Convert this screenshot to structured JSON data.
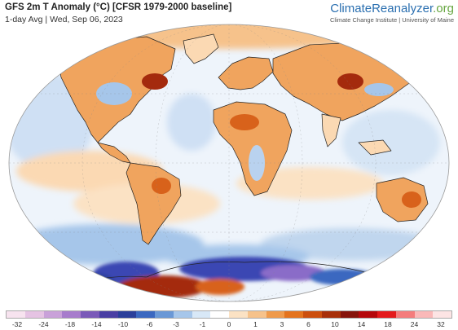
{
  "header": {
    "title": "GFS 2m T Anomaly (°C) [CFSR 1979-2000 baseline]",
    "subtitle": "1-day Avg | Wed, Sep 06, 2023"
  },
  "brand": {
    "name_main": "ClimateReanalyzer",
    "name_suffix": ".org",
    "institution": "Climate Change Institute | University of Maine",
    "color_main": "#2a6fb0",
    "color_suffix": "#66a640"
  },
  "legend": {
    "ticks": [
      "-32",
      "-24",
      "-18",
      "-14",
      "-10",
      "-6",
      "-3",
      "-1",
      "0",
      "1",
      "3",
      "6",
      "10",
      "14",
      "18",
      "24",
      "32"
    ],
    "colors": [
      "#f7e3ef",
      "#e5c3e3",
      "#c9a1d9",
      "#a77ccc",
      "#7a5ab8",
      "#4a3fa3",
      "#2b3f9a",
      "#3b68c0",
      "#6a98d6",
      "#a6c6ea",
      "#d8e8f7",
      "#ffffff",
      "#fbe2c4",
      "#f6c28b",
      "#ef9a4b",
      "#e4731d",
      "#cc4f0e",
      "#a8300a",
      "#86140b",
      "#b5080b",
      "#e41a1c",
      "#f47c7c",
      "#fab8b8",
      "#fde4e4"
    ]
  },
  "map": {
    "projection": "Robinson-like world map",
    "palette": {
      "ocean_neutral": "#e9f1fa",
      "cold_light": "#b9d2ef",
      "cold_mid": "#7fa7de",
      "cold_deep": "#3b46b3",
      "cold_purple": "#8a6cc8",
      "warm_light": "#fbd9b3",
      "warm_mid": "#f0a45e",
      "warm_deep": "#d8621b",
      "hot": "#a42a0d"
    }
  }
}
